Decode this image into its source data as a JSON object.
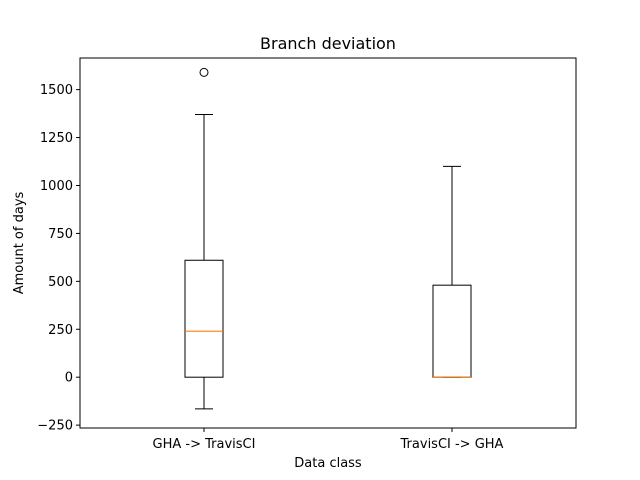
{
  "chart_data": {
    "type": "box",
    "title": "Branch deviation",
    "xlabel": "Data class",
    "ylabel": "Amount of days",
    "ylim": [
      -265,
      1665
    ],
    "yticks": [
      -250,
      0,
      250,
      500,
      750,
      1000,
      1250,
      1500
    ],
    "ytick_labels": [
      "−250",
      "0",
      "250",
      "500",
      "750",
      "1000",
      "1250",
      "1500"
    ],
    "categories": [
      "GHA -> TravisCI",
      "TravisCI -> GHA"
    ],
    "boxes": [
      {
        "whisker_low": -165,
        "q1": 0,
        "median": 240,
        "q3": 610,
        "whisker_high": 1370,
        "outliers": [
          1590
        ]
      },
      {
        "whisker_low": 0,
        "q1": 0,
        "median": 0,
        "q3": 480,
        "whisker_high": 1100,
        "outliers": []
      }
    ],
    "grid": false,
    "legend": "none",
    "colors": {
      "box": "#000000",
      "median": "#ff7f0e",
      "outlier": "#000000"
    }
  }
}
